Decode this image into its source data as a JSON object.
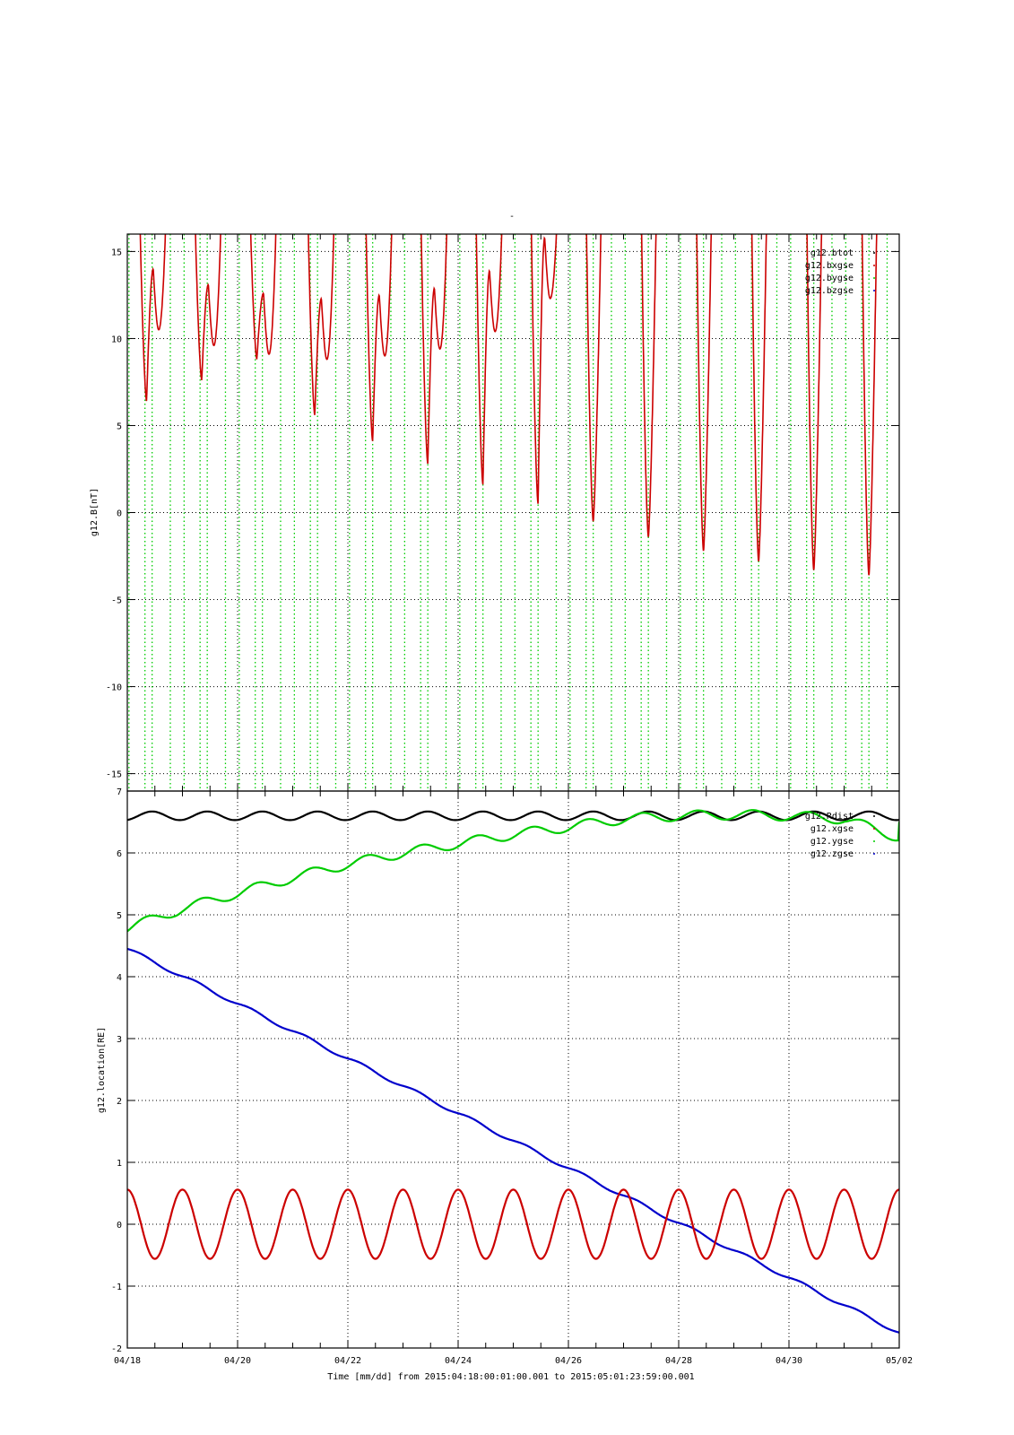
{
  "figure": {
    "title_mark": "-",
    "footer": "Time [mm/dd]  from 2015:04:18:00:01:00.001  to  2015:05:01:23:59:00.001"
  },
  "colors": {
    "black": "#000000",
    "red": "#cc0000",
    "green": "#00cc00",
    "blue": "#0000cc"
  },
  "chart_data": [
    {
      "type": "line",
      "ylabel": "g12.B[nT]",
      "xlim": [
        "2015-04-18",
        "2015-05-02"
      ],
      "ylim": [
        -16,
        16
      ],
      "yticks": [
        15,
        10,
        5,
        0,
        -5,
        -10,
        -15
      ],
      "grid": true,
      "legend_position": "top-right",
      "series": [
        {
          "name": "g12.btot",
          "color": "black",
          "style": "dots",
          "values_note_absent": true
        },
        {
          "name": "g12.bxgse",
          "color": "red",
          "style": "dots",
          "minima_days": [
            0.35,
            1.35,
            2.35,
            3.4,
            4.45,
            5.45,
            6.45,
            7.45,
            8.45,
            9.45,
            10.45,
            11.45,
            12.45,
            13.45
          ],
          "minima_values": [
            6.4,
            7.6,
            8.8,
            5.6,
            4.1,
            2.8,
            1.6,
            0.5,
            -0.5,
            -1.4,
            -2.2,
            -2.8,
            -3.3,
            -3.6
          ],
          "secondary_peaks": [
            14.0,
            13.1,
            12.6,
            12.3,
            12.5,
            12.9,
            13.9,
            15.8,
            null,
            null,
            null,
            null,
            null,
            null
          ]
        },
        {
          "name": "g12.bygse",
          "color": "green",
          "style": "dots"
        },
        {
          "name": "g12.bzgse",
          "color": "blue",
          "style": "dots"
        }
      ]
    },
    {
      "type": "line",
      "ylabel": "g12.location[RE]",
      "xlabel": "Time [mm/dd]",
      "xlim": [
        "2015-04-18",
        "2015-05-02"
      ],
      "ylim": [
        -2,
        7
      ],
      "yticks": [
        7,
        6,
        5,
        4,
        3,
        2,
        1,
        0,
        -1,
        -2
      ],
      "xticks": [
        "04/18",
        "04/20",
        "04/22",
        "04/24",
        "04/26",
        "04/28",
        "04/30",
        "05/02"
      ],
      "grid": true,
      "legend_position": "top-right",
      "series": [
        {
          "name": "g12.Rdist",
          "color": "black",
          "mean": 6.6,
          "amplitude": 0.07,
          "period_days": 1.0
        },
        {
          "name": "g12.xgse",
          "color": "red",
          "mean": 0.0,
          "amplitude": 0.56,
          "period_days": 1.0
        },
        {
          "name": "g12.ygse",
          "color": "green",
          "start": 4.78,
          "end": 6.25,
          "points_days": [
            0,
            1,
            2,
            3,
            4,
            5,
            6,
            7,
            8,
            9,
            10,
            11,
            12,
            13,
            14
          ],
          "points_values": [
            4.78,
            5.1,
            5.35,
            5.6,
            5.82,
            6.0,
            6.15,
            6.3,
            6.42,
            6.55,
            6.6,
            6.62,
            6.6,
            6.55,
            6.25
          ]
        },
        {
          "name": "g12.zgse",
          "color": "blue",
          "start": 4.45,
          "end": -1.75
        }
      ]
    }
  ]
}
